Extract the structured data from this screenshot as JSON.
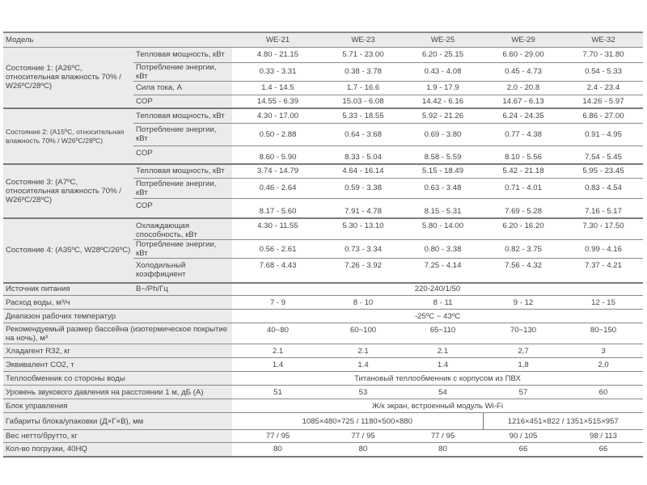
{
  "header": {
    "label": "Модель",
    "models": [
      "WE-21",
      "WE-23",
      "WE-25",
      "WE-29",
      "WE-32"
    ]
  },
  "conditions": [
    {
      "label": "Состояние 1: (A26ºC, относительная влажность 70% / W26ºC/28ºC)",
      "rows": [
        {
          "param": "Тепловая мощность, кВт",
          "values": [
            "4.80 - 21.15",
            "5.71 - 23.00",
            "6.20 - 25.15",
            "6.60 - 29.00",
            "7.70 - 31.80"
          ]
        },
        {
          "param": "Потребление энергии, кВт",
          "values": [
            "0.33 - 3.31",
            "0.38 - 3.78",
            "0.43 - 4.08",
            "0.45 - 4.73",
            "0.54 - 5.33"
          ]
        },
        {
          "param": "Сила тока, A",
          "values": [
            "1.4 - 14.5",
            "1.7 - 16.6",
            "1.9 - 17.9",
            "2.0 - 20.8",
            "2.4 - 23.4"
          ]
        },
        {
          "param": "COP",
          "values": [
            "14.55 - 6.39",
            "15.03 - 6.08",
            "14.42 - 6.16",
            "14.67 - 6.13",
            "14.26 - 5.97"
          ]
        }
      ]
    },
    {
      "label": "Состояние 2: (A15ºC, относительная влажность 70% / W26ºC/28ºC)",
      "rows": [
        {
          "param": "Тепловая мощность, кВт",
          "values": [
            "4.30 - 17.00",
            "5.33 - 18.55",
            "5.92 - 21.26",
            "6.24 - 24.35",
            "6.86 - 27.00"
          ]
        },
        {
          "param": "Потребление энергии, кВт",
          "values": [
            "0.50 - 2.88",
            "0.64 - 3.68",
            "0.69 - 3.80",
            "0.77 - 4.38",
            "0.91 - 4.95"
          ]
        },
        {
          "param": "COP",
          "values": [
            "8.60 - 5.90",
            "8.33 - 5.04",
            "8.58 - 5.59",
            "8.10 - 5.56",
            "7.54 - 5.45"
          ]
        }
      ]
    },
    {
      "label": "Состояние 3: (A7ºC, относительная влажность 70% / W26ºC/28ºC)",
      "rows": [
        {
          "param": "Тепловая мощность, кВт",
          "values": [
            "3.74 - 14.79",
            "4.64 - 16.14",
            "5.15 - 18.49",
            "5.42 - 21.18",
            "5.95 - 23.45"
          ]
        },
        {
          "param": "Потребление энергии, кВт",
          "values": [
            "0.46 - 2.64",
            "0.59 - 3.38",
            "0.63 - 3.48",
            "0.71 - 4.01",
            "0.83 - 4.54"
          ]
        },
        {
          "param": "COP",
          "values": [
            "8.17 - 5.60",
            "7.91 - 4.78",
            "8.15 - 5.31",
            "7.69 - 5.28",
            "7.16 - 5.17"
          ]
        }
      ]
    },
    {
      "label": "Состояние 4: (A35ºC, W28ºC/26ºC)",
      "rows": [
        {
          "param": "Охлаждающая способность, кВт",
          "values": [
            "4.30 - 11.55",
            "5.30 - 13.10",
            "5.80 - 14.00",
            "6.20 - 16.20",
            "7.30 - 17.50"
          ]
        },
        {
          "param": "Потребление энергии, кВт",
          "values": [
            "0.56 - 2.61",
            "0.73 - 3.34",
            "0.80 - 3.38",
            "0.82 - 3.75",
            "0.99 - 4.16"
          ]
        },
        {
          "param": "Холодильный коэффициент",
          "values": [
            "7.68 - 4.43",
            "7.26 - 3.92",
            "7.25 - 4.14",
            "7.56 - 4.32",
            "7.37 - 4.21"
          ]
        }
      ]
    }
  ],
  "power": {
    "label": "Источник питания",
    "unit": "В~/Ph/Гц",
    "value": "220-240/1/50"
  },
  "specs": [
    {
      "label": "Расход воды, м³/ч",
      "values": [
        "7 - 9",
        "8 - 10",
        "8 - 11",
        "9 - 12",
        "12 - 15"
      ]
    },
    {
      "label": "Диапазон рабочих температур",
      "span": "-25ºC ~ 43ºC"
    },
    {
      "label": "Рекомендуемый размер бассейна (изотермическое покрытие на ночь), м³",
      "values": [
        "40~80",
        "60~100",
        "65~110",
        "70~130",
        "80~150"
      ]
    },
    {
      "label": "Хладагент R32, кг",
      "values": [
        "2.1",
        "2.1",
        "2.1",
        "2,7",
        "3"
      ]
    },
    {
      "label": "Эквивалент CO2, т",
      "values": [
        "1.4",
        "1.4",
        "1.4",
        "1,8",
        "2,0"
      ]
    },
    {
      "label": "Теплообменник со стороны воды",
      "span": "Титановый теплообменник с корпусом из ПВХ"
    },
    {
      "label": "Уровень звукового давления на расстоянии 1 м, дБ (А)",
      "values": [
        "51",
        "53",
        "54",
        "57",
        "60"
      ]
    },
    {
      "label": "Блок управления",
      "span": "Ж/к экран, встроенный модуль Wi-Fi"
    },
    {
      "label": "Габариты блока/упаковки (Д×Г×В), мм",
      "split": [
        "1085×480×725 / 1180×500×880",
        "1216×451×822 / 1351×515×957"
      ]
    },
    {
      "label": "Вес нетто/брутто, кг",
      "values": [
        "77 / 95",
        "77 / 95",
        "77 / 95",
        "90 / 105",
        "98 / 113"
      ]
    },
    {
      "label": "Кол-во погрузки, 40HQ",
      "values": [
        "80",
        "80",
        "80",
        "66",
        "66"
      ]
    }
  ]
}
